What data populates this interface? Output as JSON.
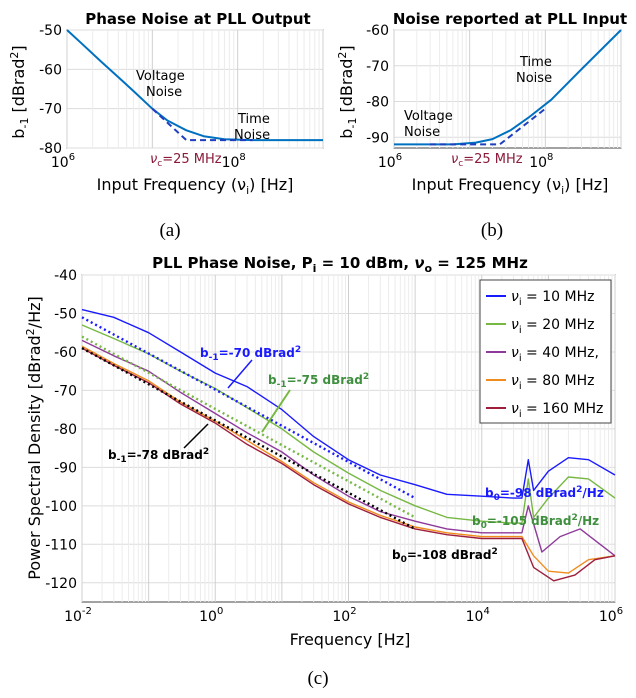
{
  "chart_data": [
    {
      "type": "line",
      "title": "Phase Noise at PLL Output",
      "xlabel": "Input Frequency (ν",
      "xlabel_sub": "i",
      "xlabel_end": ") [Hz]",
      "ylabel": "b",
      "ylabel_sub": "-1",
      "ylabel_end": " [dBrad",
      "ylabel_sup": "2",
      "ylabel_close": "]",
      "xscale": "log",
      "xlim": [
        1000000,
        1000000000
      ],
      "ylim": [
        -80,
        -50
      ],
      "yticks": [
        -50,
        -60,
        -70,
        -80
      ],
      "xtick_labels": [
        {
          "base": "10",
          "exp": "6",
          "value": 1000000
        },
        {
          "base": "10",
          "exp": "8",
          "value": 100000000
        }
      ],
      "annotations": [
        {
          "lines": [
            "Voltage",
            "Noise"
          ]
        },
        {
          "lines": [
            "Time",
            "Noise"
          ]
        },
        {
          "text": "ν",
          "sub": "c",
          "rest": "=25 MHz",
          "color": "#8b1a3a"
        }
      ],
      "series": [
        {
          "role": "measured",
          "color": "#0070c0",
          "points": [
            [
              1000000,
              -50.0
            ],
            [
              1500000,
              -53.5
            ],
            [
              2500000,
              -58.0
            ],
            [
              4000000,
              -62.0
            ],
            [
              6000000,
              -65.5
            ],
            [
              10000000,
              -70.0
            ],
            [
              15000000,
              -73.0
            ],
            [
              25000000,
              -75.5
            ],
            [
              40000000,
              -77.0
            ],
            [
              70000000,
              -77.8
            ],
            [
              150000000,
              -78.0
            ],
            [
              1000000000,
              -78.0
            ]
          ]
        },
        {
          "role": "asymptote",
          "color": "#1f3fbf",
          "dashed": true,
          "points": [
            [
              10000000,
              -70.0
            ],
            [
              25000000,
              -78.0
            ],
            [
              150000000,
              -78.0
            ]
          ]
        }
      ],
      "caption": "(a)"
    },
    {
      "type": "line",
      "title": "Noise reported at PLL Input",
      "xlabel": "Input Frequency (ν",
      "xlabel_sub": "i",
      "xlabel_end": ") [Hz]",
      "ylabel": "b",
      "ylabel_sub": "-1",
      "ylabel_end": " [dBrad",
      "ylabel_sup": "2",
      "ylabel_close": "]",
      "xscale": "log",
      "xlim": [
        1000000,
        1000000000
      ],
      "ylim": [
        -93,
        -60
      ],
      "yticks": [
        -60,
        -70,
        -80,
        -90
      ],
      "xtick_labels": [
        {
          "base": "10",
          "exp": "6",
          "value": 1000000
        },
        {
          "base": "10",
          "exp": "8",
          "value": 100000000
        }
      ],
      "annotations": [
        {
          "lines": [
            "Time",
            "Noise"
          ]
        },
        {
          "lines": [
            "Voltage",
            "Noise"
          ]
        },
        {
          "text": "ν",
          "sub": "c",
          "rest": "=25 MHz",
          "color": "#8b1a3a"
        }
      ],
      "series": [
        {
          "role": "measured",
          "color": "#0070c0",
          "points": [
            [
              1000000,
              -92.0
            ],
            [
              6000000,
              -92.0
            ],
            [
              12000000,
              -91.5
            ],
            [
              20000000,
              -90.5
            ],
            [
              35000000,
              -88.0
            ],
            [
              60000000,
              -84.5
            ],
            [
              120000000,
              -79.5
            ],
            [
              300000000,
              -71.0
            ],
            [
              1000000000,
              -60.0
            ]
          ]
        },
        {
          "role": "asymptote",
          "color": "#1f3fbf",
          "dashed": true,
          "points": [
            [
              3000000,
              -92.0
            ],
            [
              25000000,
              -92.0
            ],
            [
              100000000,
              -82.0
            ]
          ]
        }
      ],
      "caption": "(b)"
    },
    {
      "type": "line",
      "title": {
        "prefix": "PLL Phase Noise, P",
        "p_sub": "i",
        "mid": " = 10 dBm, ",
        "nu": "ν",
        "nu_sub": "o",
        "end": " = 125 MHz"
      },
      "xlabel": "Frequency [Hz]",
      "ylabel": "Power Spectral Density [dBrad",
      "ylabel_sup": "2",
      "ylabel_end": "/Hz]",
      "xscale": "log",
      "xlim": [
        0.01,
        1000000
      ],
      "ylim": [
        -125,
        -40
      ],
      "yticks": [
        -40,
        -50,
        -60,
        -70,
        -80,
        -90,
        -100,
        -110,
        -120
      ],
      "xtick_labels": [
        {
          "base": "10",
          "exp": "-2",
          "value": 0.01
        },
        {
          "base": "10",
          "exp": "0",
          "value": 1
        },
        {
          "base": "10",
          "exp": "2",
          "value": 100
        },
        {
          "base": "10",
          "exp": "4",
          "value": 10000
        },
        {
          "base": "10",
          "exp": "6",
          "value": 1000000
        }
      ],
      "legend": {
        "position": "top-right",
        "entries": [
          {
            "nu": "ν",
            "sub": "i",
            "rest": " = 10 MHz",
            "color": "#1a1aff"
          },
          {
            "nu": "ν",
            "sub": "i",
            "rest": " = 20 MHz",
            "color": "#77b843"
          },
          {
            "nu": "ν",
            "sub": "i",
            "rest": " = 40 MHz,",
            "color": "#8e3a99"
          },
          {
            "nu": "ν",
            "sub": "i",
            "rest": " = 80 MHz",
            "color": "#f08c1f"
          },
          {
            "nu": "ν",
            "sub": "i",
            "rest": " = 160 MHz",
            "color": "#9e1e3d"
          }
        ]
      },
      "annotations": [
        {
          "pre": "b",
          "sub": "-1",
          "post": "=-70 dBrad",
          "sup": "2",
          "end": "",
          "color": "#1a1aff"
        },
        {
          "pre": "b",
          "sub": "-1",
          "post": "=-75 dBrad",
          "sup": "2",
          "end": "",
          "color": "#3f8f3f"
        },
        {
          "pre": "b",
          "sub": "-1",
          "post": "=-78 dBrad",
          "sup": "2",
          "end": "",
          "color": "#000000"
        },
        {
          "pre": "b",
          "sub": "0",
          "post": "=-98 dBrad",
          "sup": "2",
          "end": "/Hz",
          "color": "#1a1aff"
        },
        {
          "pre": "b",
          "sub": "0",
          "post": "=-105 dBrad",
          "sup": "2",
          "end": "/Hz",
          "color": "#3f8f3f"
        },
        {
          "pre": "b",
          "sub": "0",
          "post": "=-108 dBrad",
          "sup": "2",
          "end": "",
          "color": "#000000"
        }
      ],
      "fit_lines": [
        {
          "color": "#1a1aff",
          "points": [
            [
              0.01,
              -51.0
            ],
            [
              1000,
              -98.0
            ]
          ]
        },
        {
          "color": "#77b843",
          "points": [
            [
              0.01,
              -56.0
            ],
            [
              1000,
              -103.0
            ]
          ]
        },
        {
          "color": "#000000",
          "points": [
            [
              0.01,
              -59.0
            ],
            [
              1000,
              -106.0
            ]
          ]
        }
      ],
      "series": [
        {
          "name": "10 MHz",
          "color": "#1a1aff",
          "points": [
            [
              0.01,
              -49.0
            ],
            [
              0.03,
              -51.0
            ],
            [
              0.1,
              -55.0
            ],
            [
              0.3,
              -60.0
            ],
            [
              1,
              -65.5
            ],
            [
              3,
              -69.0
            ],
            [
              10,
              -75.0
            ],
            [
              30,
              -82.0
            ],
            [
              100,
              -88.0
            ],
            [
              300,
              -92.0
            ],
            [
              1000,
              -94.5
            ],
            [
              3000,
              -97.0
            ],
            [
              10000,
              -97.5
            ],
            [
              30000,
              -98.0
            ],
            [
              40000,
              -98.0
            ],
            [
              50000,
              -88.0
            ],
            [
              60000,
              -96.0
            ],
            [
              100000,
              -91.0
            ],
            [
              200000,
              -87.5
            ],
            [
              400000,
              -88.0
            ],
            [
              1000000,
              -92.0
            ]
          ]
        },
        {
          "name": "20 MHz",
          "color": "#77b843",
          "points": [
            [
              0.01,
              -53.0
            ],
            [
              0.03,
              -56.5
            ],
            [
              0.1,
              -60.5
            ],
            [
              0.3,
              -65.0
            ],
            [
              1,
              -69.5
            ],
            [
              3,
              -74.5
            ],
            [
              10,
              -80.0
            ],
            [
              30,
              -86.0
            ],
            [
              100,
              -91.5
            ],
            [
              300,
              -96.0
            ],
            [
              1000,
              -100.0
            ],
            [
              3000,
              -103.0
            ],
            [
              10000,
              -104.0
            ],
            [
              30000,
              -104.5
            ],
            [
              40000,
              -104.5
            ],
            [
              50000,
              -93.0
            ],
            [
              60000,
              -103.0
            ],
            [
              100000,
              -98.0
            ],
            [
              200000,
              -92.5
            ],
            [
              400000,
              -93.0
            ],
            [
              1000000,
              -98.0
            ]
          ]
        },
        {
          "name": "40 MHz,",
          "color": "#8e3a99",
          "points": [
            [
              0.01,
              -57.0
            ],
            [
              0.03,
              -61.0
            ],
            [
              0.1,
              -65.0
            ],
            [
              0.3,
              -70.5
            ],
            [
              1,
              -76.0
            ],
            [
              3,
              -81.0
            ],
            [
              10,
              -86.0
            ],
            [
              30,
              -92.0
            ],
            [
              100,
              -97.5
            ],
            [
              300,
              -101.5
            ],
            [
              1000,
              -104.0
            ],
            [
              3000,
              -106.0
            ],
            [
              10000,
              -107.0
            ],
            [
              40000,
              -107.0
            ],
            [
              50000,
              -100.0
            ],
            [
              80000,
              -112.0
            ],
            [
              150000,
              -108.0
            ],
            [
              300000,
              -106.0
            ],
            [
              1000000,
              -113.0
            ]
          ]
        },
        {
          "name": "80 MHz",
          "color": "#f08c1f",
          "points": [
            [
              0.01,
              -58.5
            ],
            [
              0.03,
              -63.0
            ],
            [
              0.1,
              -67.5
            ],
            [
              0.3,
              -73.0
            ],
            [
              1,
              -78.0
            ],
            [
              3,
              -83.0
            ],
            [
              10,
              -88.5
            ],
            [
              30,
              -94.0
            ],
            [
              100,
              -99.0
            ],
            [
              300,
              -102.5
            ],
            [
              1000,
              -105.5
            ],
            [
              3000,
              -107.0
            ],
            [
              10000,
              -108.0
            ],
            [
              40000,
              -108.0
            ],
            [
              60000,
              -113.0
            ],
            [
              100000,
              -117.0
            ],
            [
              200000,
              -117.5
            ],
            [
              400000,
              -114.0
            ],
            [
              1000000,
              -113.0
            ]
          ]
        },
        {
          "name": "160 MHz",
          "color": "#9e1e3d",
          "points": [
            [
              0.01,
              -59.0
            ],
            [
              0.03,
              -63.5
            ],
            [
              0.1,
              -68.0
            ],
            [
              0.3,
              -73.5
            ],
            [
              1,
              -78.5
            ],
            [
              3,
              -84.0
            ],
            [
              10,
              -89.0
            ],
            [
              30,
              -94.5
            ],
            [
              100,
              -99.5
            ],
            [
              300,
              -103.0
            ],
            [
              1000,
              -106.0
            ],
            [
              3000,
              -107.5
            ],
            [
              10000,
              -108.5
            ],
            [
              40000,
              -108.5
            ],
            [
              60000,
              -116.0
            ],
            [
              120000,
              -119.5
            ],
            [
              250000,
              -118.0
            ],
            [
              500000,
              -114.0
            ],
            [
              1000000,
              -113.0
            ]
          ]
        }
      ],
      "caption": "(c)"
    }
  ]
}
